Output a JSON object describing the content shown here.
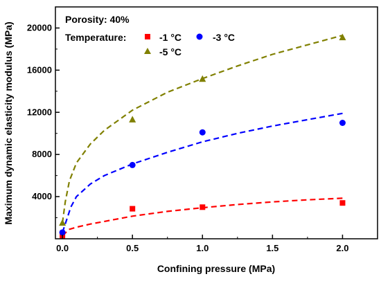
{
  "chart_data": {
    "type": "scatter",
    "title": "",
    "xlabel": "Confining pressure (MPa)",
    "ylabel": "Maximum dynamic elasticity modulus (MPa)",
    "xlim": [
      -0.05,
      2.25
    ],
    "ylim": [
      0,
      22000
    ],
    "x_ticks": [
      "0.0",
      "0.5",
      "1.0",
      "1.5",
      "2.0"
    ],
    "y_ticks": [
      "4000",
      "8000",
      "12000",
      "16000",
      "20000"
    ],
    "x_tick_values": [
      0.0,
      0.5,
      1.0,
      1.5,
      2.0
    ],
    "y_tick_values": [
      4000,
      8000,
      12000,
      16000,
      20000
    ],
    "annotation": "Porosity: 40%",
    "legend_title": "Temperature:",
    "legend_placement": "top-left",
    "grid": false,
    "series": [
      {
        "name": "-1 °C",
        "marker": "square",
        "color": "#ff0000",
        "x": [
          0.0,
          0.5,
          1.0,
          2.0
        ],
        "y": [
          300,
          2850,
          3000,
          3400
        ],
        "fit": [
          [
            0.0,
            300
          ],
          [
            0.05,
            900
          ],
          [
            0.1,
            1100
          ],
          [
            0.2,
            1400
          ],
          [
            0.3,
            1650
          ],
          [
            0.5,
            2150
          ],
          [
            0.75,
            2600
          ],
          [
            1.0,
            2950
          ],
          [
            1.25,
            3250
          ],
          [
            1.5,
            3500
          ],
          [
            1.75,
            3700
          ],
          [
            2.0,
            3850
          ]
        ]
      },
      {
        "name": "-3 °C",
        "marker": "circle",
        "color": "#0000ff",
        "x": [
          0.0,
          0.5,
          1.0,
          2.0
        ],
        "y": [
          600,
          7000,
          10100,
          11000
        ],
        "fit": [
          [
            0.0,
            600
          ],
          [
            0.03,
            1800
          ],
          [
            0.06,
            3000
          ],
          [
            0.1,
            4000
          ],
          [
            0.2,
            5200
          ],
          [
            0.3,
            6000
          ],
          [
            0.5,
            7100
          ],
          [
            0.75,
            8200
          ],
          [
            1.0,
            9200
          ],
          [
            1.25,
            10000
          ],
          [
            1.5,
            10700
          ],
          [
            1.75,
            11300
          ],
          [
            2.0,
            11900
          ]
        ]
      },
      {
        "name": "-5 °C",
        "marker": "triangle",
        "color": "#808000",
        "x": [
          0.0,
          0.5,
          1.0,
          2.0
        ],
        "y": [
          1500,
          11300,
          15150,
          19100
        ],
        "fit": [
          [
            0.0,
            1500
          ],
          [
            0.02,
            3500
          ],
          [
            0.05,
            5500
          ],
          [
            0.1,
            7200
          ],
          [
            0.2,
            9000
          ],
          [
            0.3,
            10300
          ],
          [
            0.5,
            12200
          ],
          [
            0.75,
            13900
          ],
          [
            1.0,
            15200
          ],
          [
            1.25,
            16400
          ],
          [
            1.5,
            17500
          ],
          [
            1.75,
            18400
          ],
          [
            2.0,
            19300
          ]
        ]
      }
    ]
  }
}
